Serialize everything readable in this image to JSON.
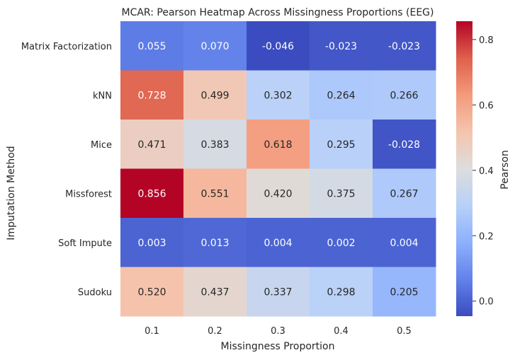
{
  "chart_data": {
    "type": "heatmap",
    "title": "MCAR: Pearson Heatmap Across Missingness Proportions (EEG)",
    "xlabel": "Missingness Proportion",
    "ylabel": "Imputation Method",
    "x_categories": [
      "0.1",
      "0.2",
      "0.3",
      "0.4",
      "0.5"
    ],
    "y_categories": [
      "Matrix Factorization",
      "kNN",
      "Mice",
      "Missforest",
      "Soft Impute",
      "Sudoku"
    ],
    "values": [
      [
        0.055,
        0.07,
        -0.046,
        -0.023,
        -0.023
      ],
      [
        0.728,
        0.499,
        0.302,
        0.264,
        0.266
      ],
      [
        0.471,
        0.383,
        0.618,
        0.295,
        -0.028
      ],
      [
        0.856,
        0.551,
        0.42,
        0.375,
        0.267
      ],
      [
        0.003,
        0.013,
        0.004,
        0.002,
        0.004
      ],
      [
        0.52,
        0.437,
        0.337,
        0.298,
        0.205
      ]
    ],
    "value_format": "0.000",
    "colormap": "coolwarm",
    "color_range": [
      -0.046,
      0.856
    ],
    "colorbar": {
      "label": "Pearson",
      "ticks": [
        "0.0",
        "0.2",
        "0.4",
        "0.6",
        "0.8"
      ],
      "tick_values": [
        0.0,
        0.2,
        0.4,
        0.6,
        0.8
      ],
      "placement": "right"
    },
    "grid": false
  }
}
